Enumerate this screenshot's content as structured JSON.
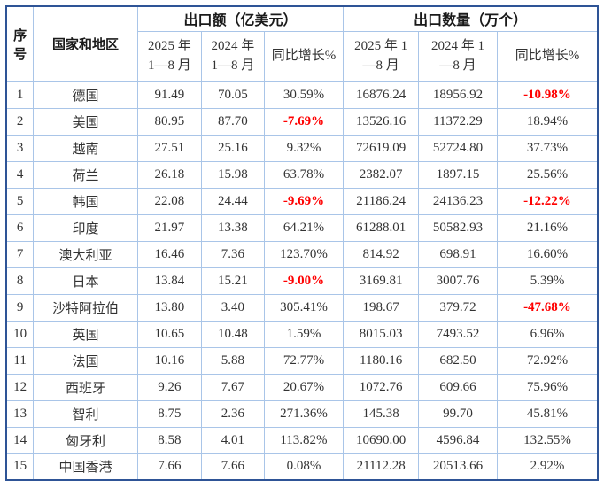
{
  "table": {
    "header": {
      "col_no": "序号",
      "col_country": "国家和地区",
      "group_value": "出口额（亿美元）",
      "group_qty": "出口数量（万个）",
      "value_2025": "2025 年\n1—8 月",
      "value_2024": "2024 年\n1—8 月",
      "value_growth": "同比增长%",
      "qty_2025": "2025 年 1\n—8 月",
      "qty_2024": "2024 年 1\n—8 月",
      "qty_growth": "同比增长%"
    },
    "rows": [
      [
        "1",
        "德国",
        "91.49",
        "70.05",
        "30.59%",
        "16876.24",
        "18956.92",
        "-10.98%"
      ],
      [
        "2",
        "美国",
        "80.95",
        "87.70",
        "-7.69%",
        "13526.16",
        "11372.29",
        "18.94%"
      ],
      [
        "3",
        "越南",
        "27.51",
        "25.16",
        "9.32%",
        "72619.09",
        "52724.80",
        "37.73%"
      ],
      [
        "4",
        "荷兰",
        "26.18",
        "15.98",
        "63.78%",
        "2382.07",
        "1897.15",
        "25.56%"
      ],
      [
        "5",
        "韩国",
        "22.08",
        "24.44",
        "-9.69%",
        "21186.24",
        "24136.23",
        "-12.22%"
      ],
      [
        "6",
        "印度",
        "21.97",
        "13.38",
        "64.21%",
        "61288.01",
        "50582.93",
        "21.16%"
      ],
      [
        "7",
        "澳大利亚",
        "16.46",
        "7.36",
        "123.70%",
        "814.92",
        "698.91",
        "16.60%"
      ],
      [
        "8",
        "日本",
        "13.84",
        "15.21",
        "-9.00%",
        "3169.81",
        "3007.76",
        "5.39%"
      ],
      [
        "9",
        "沙特阿拉伯",
        "13.80",
        "3.40",
        "305.41%",
        "198.67",
        "379.72",
        "-47.68%"
      ],
      [
        "10",
        "英国",
        "10.65",
        "10.48",
        "1.59%",
        "8015.03",
        "7493.52",
        "6.96%"
      ],
      [
        "11",
        "法国",
        "10.16",
        "5.88",
        "72.77%",
        "1180.16",
        "682.50",
        "72.92%"
      ],
      [
        "12",
        "西班牙",
        "9.26",
        "7.67",
        "20.67%",
        "1072.76",
        "609.66",
        "75.96%"
      ],
      [
        "13",
        "智利",
        "8.75",
        "2.36",
        "271.36%",
        "145.38",
        "99.70",
        "45.81%"
      ],
      [
        "14",
        "匈牙利",
        "8.58",
        "4.01",
        "113.82%",
        "10690.00",
        "4596.84",
        "132.55%"
      ],
      [
        "15",
        "中国香港",
        "7.66",
        "7.66",
        "0.08%",
        "21112.28",
        "20513.66",
        "2.92%"
      ]
    ],
    "colors": {
      "negative_text": "#ff0000",
      "body_text": "#333333",
      "grid_line": "#a9c5e8",
      "outer_border": "#2e5496"
    }
  }
}
